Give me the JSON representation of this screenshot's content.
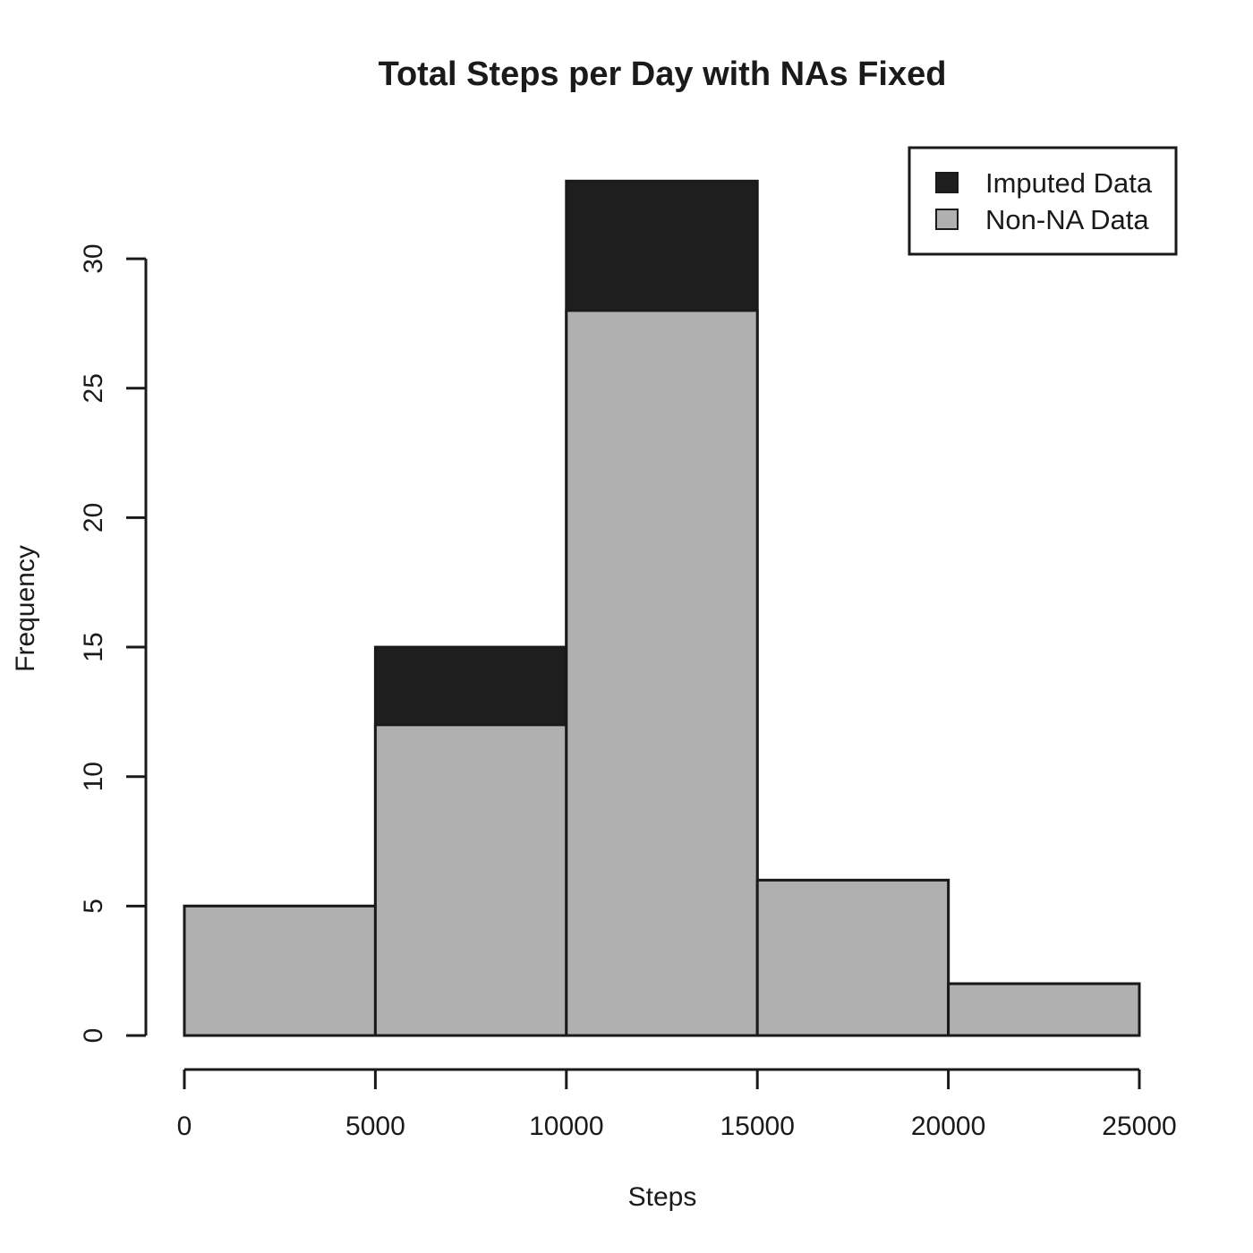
{
  "chart_data": {
    "type": "bar",
    "title": "Total Steps per Day with NAs Fixed",
    "xlabel": "Steps",
    "ylabel": "Frequency",
    "bins": [
      [
        0,
        5000
      ],
      [
        5000,
        10000
      ],
      [
        10000,
        15000
      ],
      [
        15000,
        20000
      ],
      [
        20000,
        25000
      ]
    ],
    "x_ticks": [
      0,
      5000,
      10000,
      15000,
      20000,
      25000
    ],
    "y_ticks": [
      0,
      5,
      10,
      15,
      20,
      25,
      30
    ],
    "xlim": [
      0,
      25000
    ],
    "ylim": [
      0,
      33
    ],
    "series": [
      {
        "name": "Imputed Data",
        "color": "#1e1e1e",
        "values": [
          5,
          15,
          33,
          6,
          2
        ]
      },
      {
        "name": "Non-NA Data",
        "color": "#b0b0b0",
        "values": [
          5,
          12,
          28,
          6,
          2
        ]
      }
    ],
    "legend_position": "top-right",
    "grid": false
  }
}
